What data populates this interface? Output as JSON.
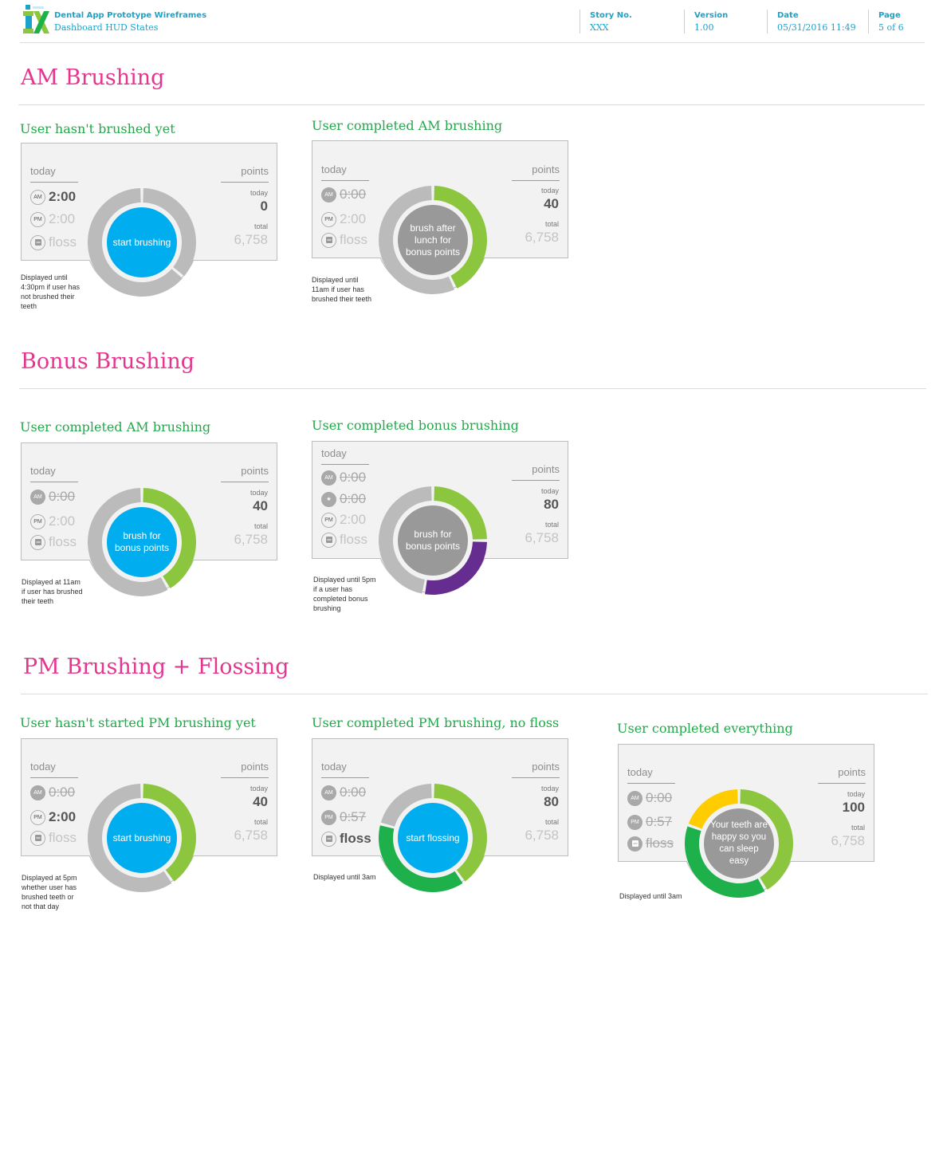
{
  "header": {
    "app_title": "Dental App Prototype Wireframes",
    "subtitle": "Dashboard HUD States",
    "meta": [
      {
        "label": "Story No.",
        "value": "XXX"
      },
      {
        "label": "Version",
        "value": "1.00"
      },
      {
        "label": "Date",
        "value": "05/31/2016 11:49"
      },
      {
        "label": "Page",
        "value": "5 of 6"
      }
    ]
  },
  "colors": {
    "pink": "#e6358f",
    "green": "#22a84a",
    "blue": "#00aeef",
    "lime": "#8cc63f",
    "purple": "#662d91",
    "dark_green": "#1db04b",
    "yellow": "#ffcc00",
    "gray": "#bbbbbb"
  },
  "sections": [
    {
      "title": "AM Brushing"
    },
    {
      "title": "Bonus Brushing"
    },
    {
      "title": "PM Brushing + Flossing"
    }
  ],
  "labels": {
    "today": "today",
    "points": "points",
    "today_small": "today",
    "total_small": "total",
    "am": "AM",
    "pm": "PM",
    "floss": "floss"
  },
  "states": [
    {
      "title": "User hasn't brushed yet",
      "rows": [
        "2:00",
        "2:00",
        "floss"
      ],
      "pts_today": "0",
      "pts_total": "6,758",
      "center": "start brushing",
      "note": "Displayed until 4:30pm if user has not brushed their teeth"
    },
    {
      "title": "User completed AM brushing",
      "rows": [
        "0:00",
        "2:00",
        "floss"
      ],
      "pts_today": "40",
      "pts_total": "6,758",
      "center": "brush after lunch for bonus points",
      "note": "Displayed until 11am if user has brushed their teeth"
    },
    {
      "title": "User completed AM brushing",
      "rows": [
        "0:00",
        "2:00",
        "floss"
      ],
      "pts_today": "40",
      "pts_total": "6,758",
      "center": "brush for bonus points",
      "note": "Displayed at 11am if user has brushed their teeth"
    },
    {
      "title": "User completed bonus brushing",
      "rows": [
        "0:00",
        "0:00",
        "2:00",
        "floss"
      ],
      "pts_today": "80",
      "pts_total": "6,758",
      "center": "brush for bonus points",
      "note": "Displayed until 5pm if a user has completed bonus brushing"
    },
    {
      "title": "User hasn't started PM brushing yet",
      "rows": [
        "0:00",
        "2:00",
        "floss"
      ],
      "pts_today": "40",
      "pts_total": "6,758",
      "center": "start brushing",
      "note": "Displayed at 5pm whether user has brushed teeth or not that day"
    },
    {
      "title": "User completed PM brushing, no floss",
      "rows": [
        "0:00",
        "0:57",
        "floss"
      ],
      "pts_today": "80",
      "pts_total": "6,758",
      "center": "start flossing",
      "note": "Displayed until 3am"
    },
    {
      "title": "User completed everything",
      "rows": [
        "0:00",
        "0:57",
        "floss"
      ],
      "pts_today": "100",
      "pts_total": "6,758",
      "center": "Your teeth are happy so you can sleep easy",
      "note": "Displayed until 3am"
    }
  ]
}
